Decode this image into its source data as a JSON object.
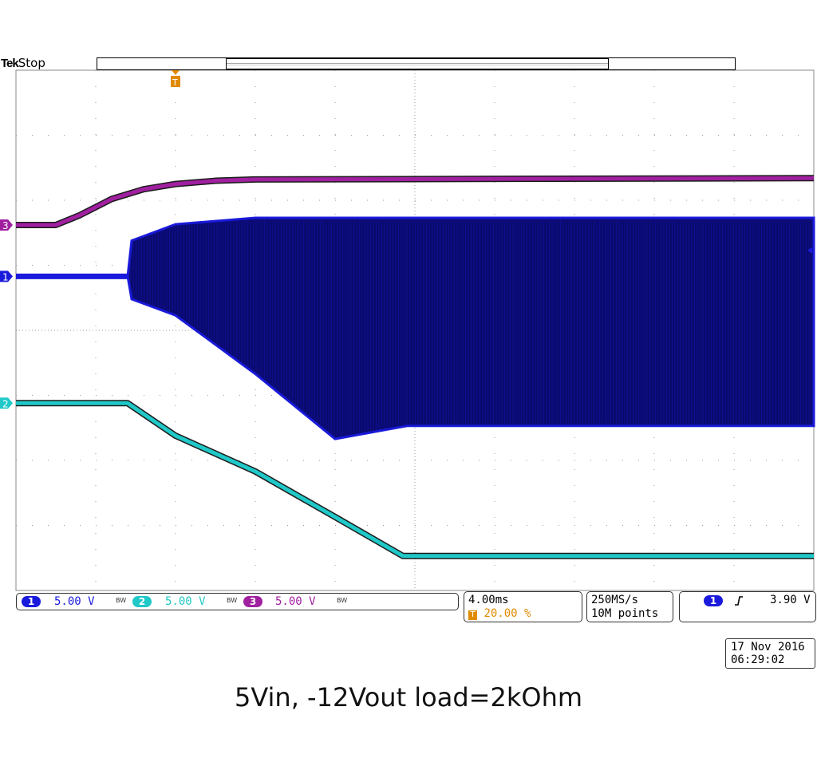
{
  "scope": {
    "brand": "Tek",
    "run_state": "Stop",
    "trigger_marker": "T",
    "channels": [
      {
        "id": "1",
        "scale": "5.00 V",
        "bw": "BW",
        "color": "#1a1adc"
      },
      {
        "id": "2",
        "scale": "5.00 V",
        "bw": "BW",
        "color": "#20c8c8"
      },
      {
        "id": "3",
        "scale": "5.00 V",
        "bw": "BW",
        "color": "#a020a0"
      }
    ],
    "timebase": {
      "per_div": "4.00ms",
      "trigger_position": "20.00 %"
    },
    "acquisition": {
      "sample_rate": "250MS/s",
      "record_length": "10M points"
    },
    "trigger": {
      "channel": "1",
      "edge": "rising",
      "level": "3.90 V"
    },
    "date": "17 Nov 2016",
    "time": "06:29:02"
  },
  "caption": "5Vin, -12Vout load=2kOhm",
  "chart_data": {
    "type": "line",
    "title": "5Vin, -12Vout load=2kOhm",
    "x_unit": "div (4.00ms/div)",
    "xlim": [
      0,
      10
    ],
    "ylim": [
      -4,
      4
    ],
    "grid": true,
    "series": [
      {
        "name": "1",
        "color": "#1a1adc",
        "offset_div": 0.83,
        "envelope_x": [
          0,
          1.4,
          1.45,
          2.0,
          3.0,
          4.0,
          4.9,
          10
        ],
        "envelope_top": [
          0,
          0,
          0.55,
          0.8,
          0.9,
          0.9,
          0.9,
          0.9
        ],
        "envelope_bottom": [
          0,
          0,
          -0.35,
          -0.6,
          -1.5,
          -2.5,
          -2.3,
          -2.3
        ]
      },
      {
        "name": "2",
        "color": "#20c8c8",
        "offset_div": -1.12,
        "x": [
          0,
          1.4,
          2.0,
          3.0,
          4.0,
          4.85,
          10
        ],
        "y_div": [
          0,
          0,
          -0.5,
          -1.05,
          -1.75,
          -2.35,
          -2.35
        ]
      },
      {
        "name": "3",
        "color": "#a020a0",
        "offset_div": 1.62,
        "x": [
          0,
          0.5,
          0.8,
          1.2,
          1.6,
          2.0,
          2.5,
          3.0,
          10
        ],
        "y_div": [
          0,
          0,
          0.15,
          0.4,
          0.55,
          0.63,
          0.68,
          0.7,
          0.72
        ]
      }
    ]
  }
}
